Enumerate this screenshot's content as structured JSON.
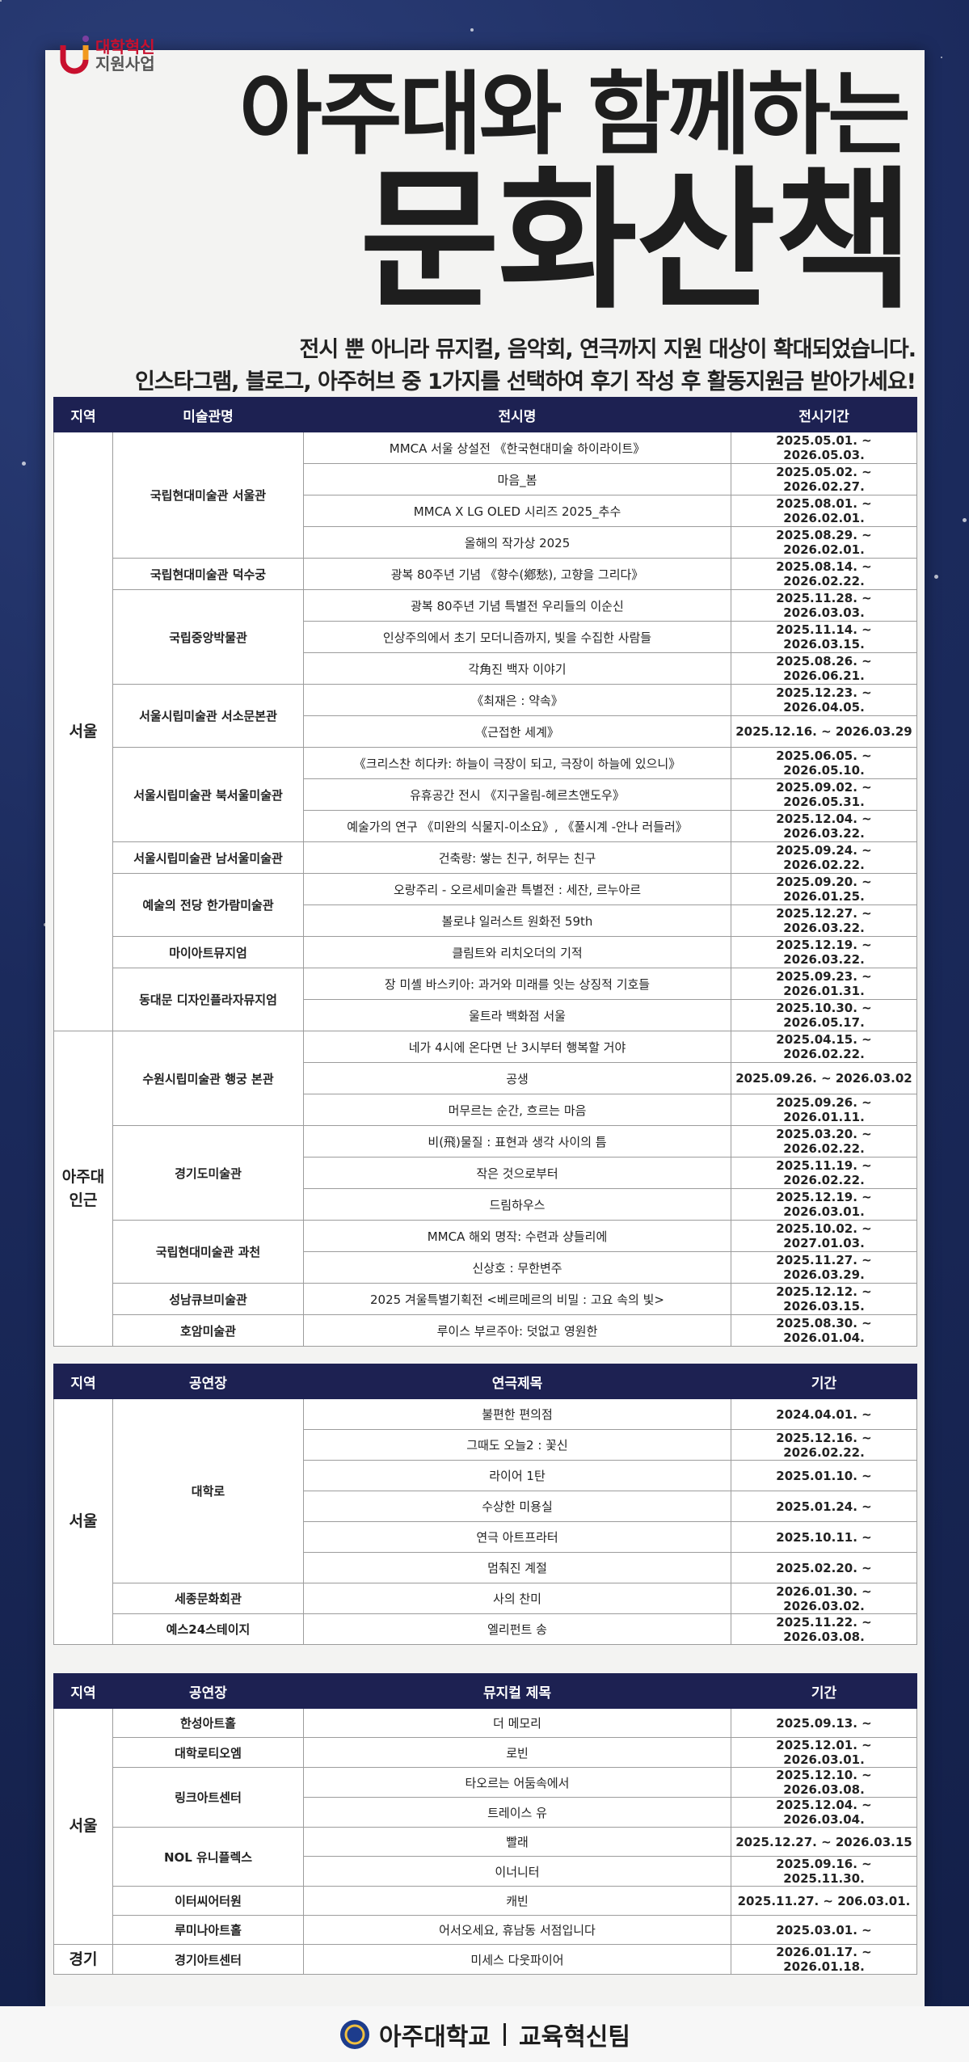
{
  "logo": {
    "title": "대학혁신",
    "subtitle": "지원사업"
  },
  "title": {
    "line1": "아주대와 함께하는",
    "line2": "문화산책"
  },
  "subtitle": [
    "전시 뿐 아니라 뮤지컬, 음악회, 연극까지 지원 대상이 확대되었습니다.",
    "인스타그램, 블로그, 아주허브 중 1가지를 선택하여 후기 작성 후 활동지원금 받아가세요!"
  ],
  "tables": [
    {
      "headers": [
        "지역",
        "미술관명",
        "전시명",
        "전시기간"
      ],
      "regions": [
        {
          "name": "서울",
          "venues": [
            {
              "name": "국립현대미술관 서울관",
              "items": [
                [
                  "MMCA 서울 상설전 《한국현대미술 하이라이트》",
                  "2025.05.01. ~ 2026.05.03."
                ],
                [
                  "마음_봄",
                  "2025.05.02. ~ 2026.02.27."
                ],
                [
                  "MMCA X LG OLED 시리즈 2025_추수",
                  "2025.08.01. ~ 2026.02.01."
                ],
                [
                  "올해의 작가상 2025",
                  "2025.08.29. ~ 2026.02.01."
                ]
              ]
            },
            {
              "name": "국립현대미술관 덕수궁",
              "items": [
                [
                  "광복 80주년 기념 《향수(鄕愁), 고향을 그리다》",
                  "2025.08.14. ~ 2026.02.22."
                ]
              ]
            },
            {
              "name": "국립중앙박물관",
              "items": [
                [
                  "광복 80주년 기념 특별전 우리들의 이순신",
                  "2025.11.28. ~ 2026.03.03."
                ],
                [
                  "인상주의에서 초기 모더니즘까지, 빛을 수집한 사람들",
                  "2025.11.14. ~ 2026.03.15."
                ],
                [
                  "각角진 백자 이야기",
                  "2025.08.26. ~ 2026.06.21."
                ]
              ]
            },
            {
              "name": "서울시립미술관 서소문본관",
              "items": [
                [
                  "《최재은 : 약속》",
                  "2025.12.23. ~ 2026.04.05."
                ],
                [
                  "《근접한 세계》",
                  "2025.12.16. ~ 2026.03.29"
                ]
              ]
            },
            {
              "name": "서울시립미술관 북서울미술관",
              "items": [
                [
                  "《크리스찬 히다카: 하늘이 극장이 되고, 극장이 하늘에 있으니》",
                  "2025.06.05. ~ 2026.05.10."
                ],
                [
                  "유휴공간 전시 《지구올림-헤르츠앤도우》",
                  "2025.09.02. ~ 2026.05.31."
                ],
                [
                  "예술가의 연구 《미완의 식물지-이소요》, 《풀시계 -안나 러들러》",
                  "2025.12.04. ~ 2026.03.22."
                ]
              ]
            },
            {
              "name": "서울시립미술관 남서울미술관",
              "items": [
                [
                  "건축랑: 쌓는 친구, 허무는 친구",
                  "2025.09.24. ~ 2026.02.22."
                ]
              ]
            },
            {
              "name": "예술의 전당 한가람미술관",
              "items": [
                [
                  "오랑주리 - 오르세미술관 특별전 : 세잔, 르누아르",
                  "2025.09.20. ~ 2026.01.25."
                ],
                [
                  "볼로냐 일러스트 원화전 59th",
                  "2025.12.27. ~ 2026.03.22."
                ]
              ]
            },
            {
              "name": "마이아트뮤지엄",
              "items": [
                [
                  "클림트와 리치오더의 기적",
                  "2025.12.19. ~ 2026.03.22."
                ]
              ]
            },
            {
              "name": "동대문 디자인플라자뮤지엄",
              "items": [
                [
                  "장 미셸 바스키아: 과거와 미래를 잇는 상징적 기호들",
                  "2025.09.23. ~ 2026.01.31."
                ],
                [
                  "울트라 백화점 서울",
                  "2025.10.30. ~ 2026.05.17."
                ]
              ]
            }
          ]
        },
        {
          "name": "아주대 인근",
          "venues": [
            {
              "name": "수원시립미술관 행궁 본관",
              "items": [
                [
                  "네가 4시에 온다면 난 3시부터 행복할 거야",
                  "2025.04.15. ~ 2026.02.22."
                ],
                [
                  "공생",
                  "2025.09.26. ~ 2026.03.02"
                ],
                [
                  "머무르는 순간, 흐르는 마음",
                  "2025.09.26. ~ 2026.01.11."
                ]
              ]
            },
            {
              "name": "경기도미술관",
              "items": [
                [
                  "비(飛)물질 : 표현과 생각 사이의 틈",
                  "2025.03.20. ~ 2026.02.22."
                ],
                [
                  "작은 것으로부터",
                  "2025.11.19. ~ 2026.02.22."
                ],
                [
                  "드림하우스",
                  "2025.12.19. ~ 2026.03.01."
                ]
              ]
            },
            {
              "name": "국립현대미술관 과천",
              "items": [
                [
                  "MMCA 해외 명작: 수련과 샹들리에",
                  "2025.10.02. ~ 2027.01.03."
                ],
                [
                  "신상호 : 무한변주",
                  "2025.11.27. ~ 2026.03.29."
                ]
              ]
            },
            {
              "name": "성남큐브미술관",
              "items": [
                [
                  "2025 겨울특별기획전 <베르메르의 비밀 : 고요 속의 빛>",
                  "2025.12.12. ~ 2026.03.15."
                ]
              ]
            },
            {
              "name": "호암미술관",
              "items": [
                [
                  "루이스 부르주아: 덧없고 영원한",
                  "2025.08.30. ~ 2026.01.04."
                ]
              ]
            }
          ]
        }
      ]
    },
    {
      "headers": [
        "지역",
        "공연장",
        "연극제목",
        "기간"
      ],
      "regions": [
        {
          "name": "서울",
          "venues": [
            {
              "name": "대학로",
              "items": [
                [
                  "불편한 편의점",
                  "2024.04.01. ~"
                ],
                [
                  "그때도 오늘2 : 꽃신",
                  "2025.12.16. ~ 2026.02.22."
                ],
                [
                  "라이어 1탄",
                  "2025.01.10. ~"
                ],
                [
                  "수상한 미용실",
                  "2025.01.24. ~"
                ],
                [
                  "연극 아트프라터",
                  "2025.10.11. ~"
                ],
                [
                  "멈춰진 계절",
                  "2025.02.20. ~"
                ]
              ]
            },
            {
              "name": "세종문화회관",
              "items": [
                [
                  "사의 찬미",
                  "2026.01.30. ~ 2026.03.02."
                ]
              ]
            },
            {
              "name": "예스24스테이지",
              "items": [
                [
                  "엘리펀트 송",
                  "2025.11.22. ~ 2026.03.08."
                ]
              ]
            }
          ]
        }
      ]
    },
    {
      "headers": [
        "지역",
        "공연장",
        "뮤지컬 제목",
        "기간"
      ],
      "regions": [
        {
          "name": "서울",
          "venues": [
            {
              "name": "한성아트홀",
              "items": [
                [
                  "더 메모리",
                  "2025.09.13. ~"
                ]
              ]
            },
            {
              "name": "대학로티오엠",
              "items": [
                [
                  "로빈",
                  "2025.12.01. ~ 2026.03.01."
                ]
              ]
            },
            {
              "name": "링크아트센터",
              "items": [
                [
                  "타오르는 어둠속에서",
                  "2025.12.10. ~ 2026.03.08."
                ],
                [
                  "트레이스 유",
                  "2025.12.04. ~ 2026.03.04."
                ]
              ]
            },
            {
              "name": "NOL 유니플렉스",
              "items": [
                [
                  "빨래",
                  "2025.12.27. ~ 2026.03.15"
                ],
                [
                  "이너니터",
                  "2025.09.16. ~ 2025.11.30."
                ]
              ]
            },
            {
              "name": "이터씨어터원",
              "items": [
                [
                  "캐빈",
                  "2025.11.27. ~ 206.03.01."
                ]
              ]
            },
            {
              "name": "루미나아트홀",
              "items": [
                [
                  "어서오세요, 휴남동 서점입니다",
                  "2025.03.01. ~"
                ]
              ]
            }
          ]
        },
        {
          "name": "경기",
          "venues": [
            {
              "name": "경기아트센터",
              "items": [
                [
                  "미세스 다웃파이어",
                  "2026.01.17. ~ 2026.01.18."
                ]
              ]
            }
          ]
        }
      ]
    }
  ],
  "footer": {
    "org": "아주대학교",
    "team": "교육혁신팀"
  }
}
